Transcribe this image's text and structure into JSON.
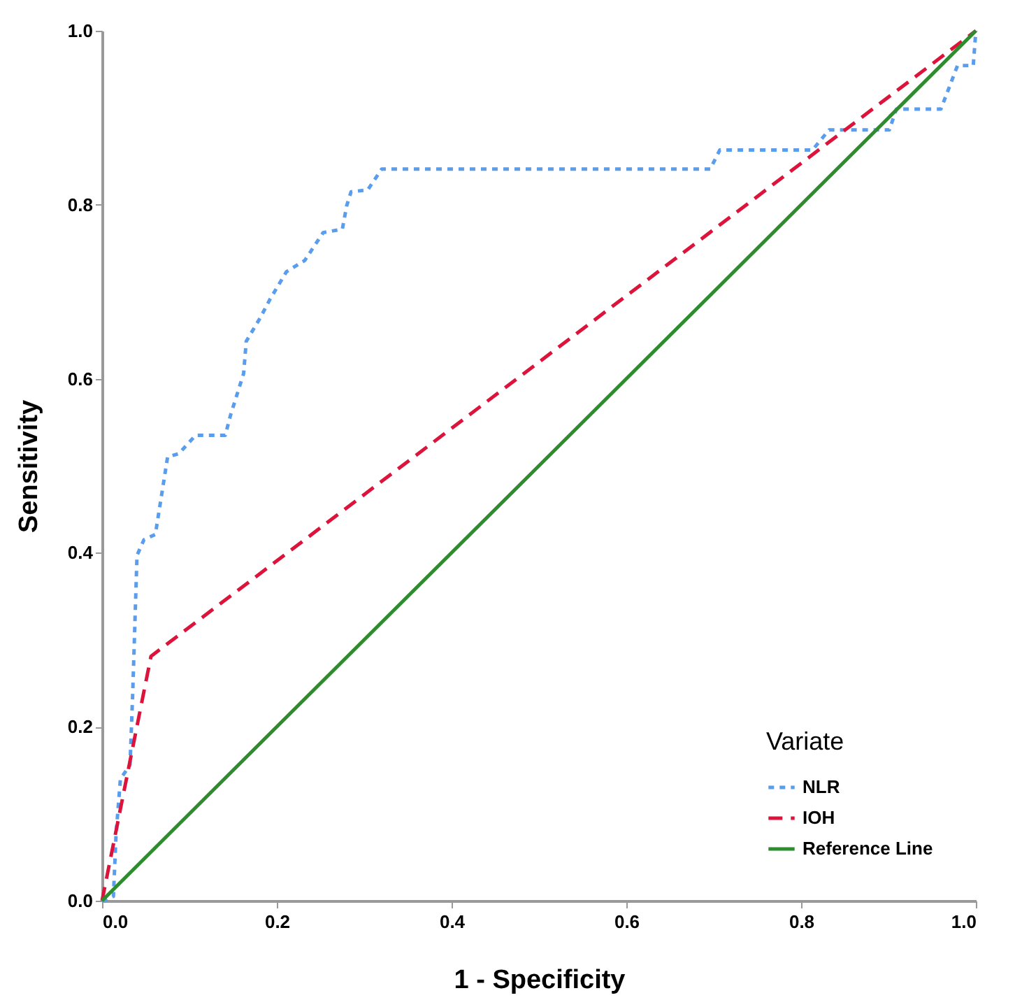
{
  "chart_data": {
    "type": "line",
    "xlabel": "1 - Specificity",
    "ylabel": "Sensitivity",
    "legend_title": "Variate",
    "legend": "bottom right",
    "grid": false,
    "xlim": [
      0,
      1
    ],
    "ylim": [
      0,
      1
    ],
    "xticks": [
      {
        "value": 0,
        "label": "0.0"
      },
      {
        "value": 0.2,
        "label": "0.2"
      },
      {
        "value": 0.4,
        "label": "0.4"
      },
      {
        "value": 0.6,
        "label": "0.6"
      },
      {
        "value": 0.8,
        "label": "0.8"
      },
      {
        "value": 1,
        "label": "1.0"
      }
    ],
    "yticks": [
      {
        "value": 0,
        "label": "0.0"
      },
      {
        "value": 0.2,
        "label": "0.2"
      },
      {
        "value": 0.4,
        "label": "0.4"
      },
      {
        "value": 0.6,
        "label": "0.6"
      },
      {
        "value": 0.8,
        "label": "0.8"
      },
      {
        "value": 1,
        "label": "1.0"
      }
    ],
    "series": [
      {
        "name": "NLR",
        "color": "#5b9ded",
        "line_style": "dotted",
        "x": [
          0,
          0.003,
          0.013,
          0.016,
          0.021,
          0.032,
          0.035,
          0.04,
          0.048,
          0.061,
          0.075,
          0.088,
          0.107,
          0.141,
          0.147,
          0.162,
          0.165,
          0.181,
          0.192,
          0.211,
          0.232,
          0.253,
          0.275,
          0.28,
          0.285,
          0.304,
          0.32,
          0.696,
          0.707,
          0.813,
          0.832,
          0.901,
          0.909,
          0.96,
          0.979,
          0.997,
          1
        ],
        "values": [
          0,
          0,
          0.005,
          0.076,
          0.14,
          0.156,
          0.236,
          0.397,
          0.415,
          0.421,
          0.51,
          0.514,
          0.535,
          0.535,
          0.558,
          0.606,
          0.643,
          0.67,
          0.691,
          0.723,
          0.736,
          0.768,
          0.772,
          0.799,
          0.815,
          0.817,
          0.841,
          0.841,
          0.863,
          0.863,
          0.886,
          0.886,
          0.91,
          0.91,
          0.96,
          0.96,
          1
        ]
      },
      {
        "name": "IOH",
        "color": "#dc143c",
        "line_style": "dashed",
        "x": [
          0,
          0.056,
          1
        ],
        "values": [
          0,
          0.281,
          1
        ]
      },
      {
        "name": "Reference Line",
        "color": "#2e8b2e",
        "line_style": "solid",
        "x": [
          0,
          1
        ],
        "values": [
          0,
          1
        ]
      }
    ]
  }
}
